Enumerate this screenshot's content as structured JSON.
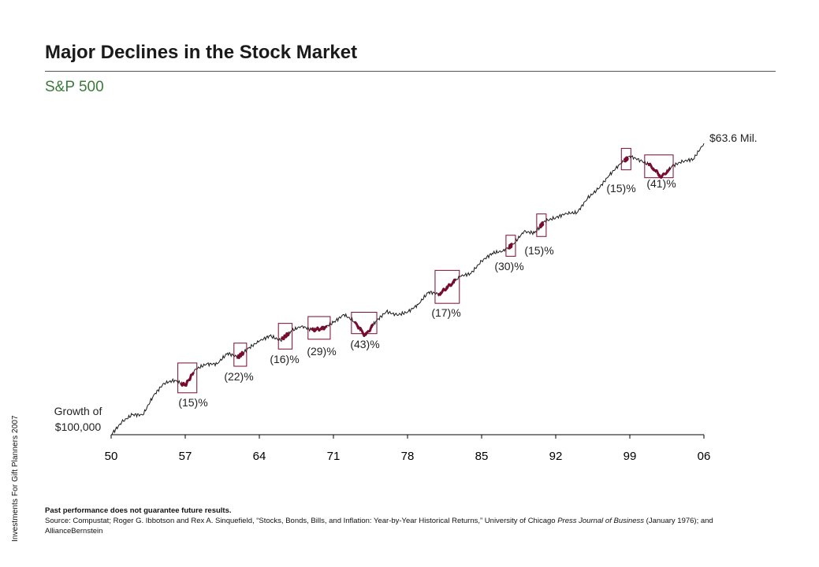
{
  "title": "Major Declines in the Stock Market",
  "subtitle": "S&P 500",
  "side_note": "Investments For Gift Planners 2007",
  "footer": {
    "disclaimer": "Past performance does not guarantee future results.",
    "source_a": "Source: Compustat; Roger G. Ibbotson and Rex A. Sinquefield, “Stocks, Bonds, Bills, and Inflation: Year-by-Year Historical Returns,” University of Chicago ",
    "source_italic": "Press Journal of Business",
    "source_b": " (January 1976); and AllianceBernstein"
  },
  "colors": {
    "line": "#1a1a1a",
    "decline": "#7a0a2e",
    "axis": "#000000"
  },
  "chart_data": {
    "type": "line",
    "title": "S&P 500",
    "start_label": [
      "Growth of",
      "$100,000"
    ],
    "end_label": "$63.6 Mil.",
    "x_tick_labels": [
      "50",
      "57",
      "64",
      "71",
      "78",
      "85",
      "92",
      "99",
      "06"
    ],
    "x_ticks": [
      1950,
      1957,
      1964,
      1971,
      1978,
      1985,
      1992,
      1999,
      2006
    ],
    "xlim": [
      1950,
      2006
    ],
    "log_scale": true,
    "start_value": 100000,
    "end_value": 63600000,
    "grid": false,
    "series": [
      {
        "x": [
          1950,
          1951,
          1952,
          1953,
          1954,
          1955,
          1956,
          1957,
          1958,
          1959,
          1960,
          1961,
          1962,
          1963,
          1964,
          1965,
          1966,
          1967,
          1968,
          1969,
          1970,
          1971,
          1972,
          1973,
          1974,
          1975,
          1976,
          1977,
          1978,
          1979,
          1980,
          1981,
          1982,
          1983,
          1984,
          1985,
          1986,
          1987,
          1988,
          1989,
          1990,
          1991,
          1992,
          1993,
          1994,
          1995,
          1996,
          1997,
          1998,
          1999,
          2000,
          2001,
          2002,
          2003,
          2004,
          2005,
          2006
        ],
        "values": [
          100000,
          132000,
          156000,
          155000,
          238000,
          313000,
          334000,
          298000,
          427000,
          478000,
          480000,
          609000,
          557000,
          683000,
          796000,
          895000,
          805000,
          997000,
          1108000,
          1013000,
          1053000,
          1204000,
          1432000,
          1222000,
          898000,
          1232000,
          1527000,
          1417000,
          1510000,
          1789000,
          2369000,
          2253000,
          2736000,
          3352000,
          3562000,
          4692000,
          5568000,
          5861000,
          6834000,
          9000000,
          8721000,
          11378000,
          12245000,
          13479000,
          13657000,
          18786000,
          23100000,
          30807000,
          39611000,
          47946000,
          43581000,
          38401000,
          29917000,
          38500000,
          42689000,
          44786000,
          63600000
        ]
      }
    ],
    "declines": [
      {
        "label": "(15)%",
        "start": 1956.6,
        "end": 1957.8
      },
      {
        "label": "(22)%",
        "start": 1961.9,
        "end": 1962.5
      },
      {
        "label": "(16)%",
        "start": 1966.1,
        "end": 1966.8
      },
      {
        "label": "(29)%",
        "start": 1968.9,
        "end": 1970.4
      },
      {
        "label": "(43)%",
        "start": 1973.0,
        "end": 1974.8
      },
      {
        "label": "(17)%",
        "start": 1980.9,
        "end": 1982.6
      },
      {
        "label": "(30)%",
        "start": 1987.6,
        "end": 1987.9
      },
      {
        "label": "(15)%",
        "start": 1990.5,
        "end": 1990.8
      },
      {
        "label": "(15)%",
        "start": 1998.5,
        "end": 1998.8
      },
      {
        "label": "(41)%",
        "start": 2000.7,
        "end": 2002.8
      }
    ]
  }
}
